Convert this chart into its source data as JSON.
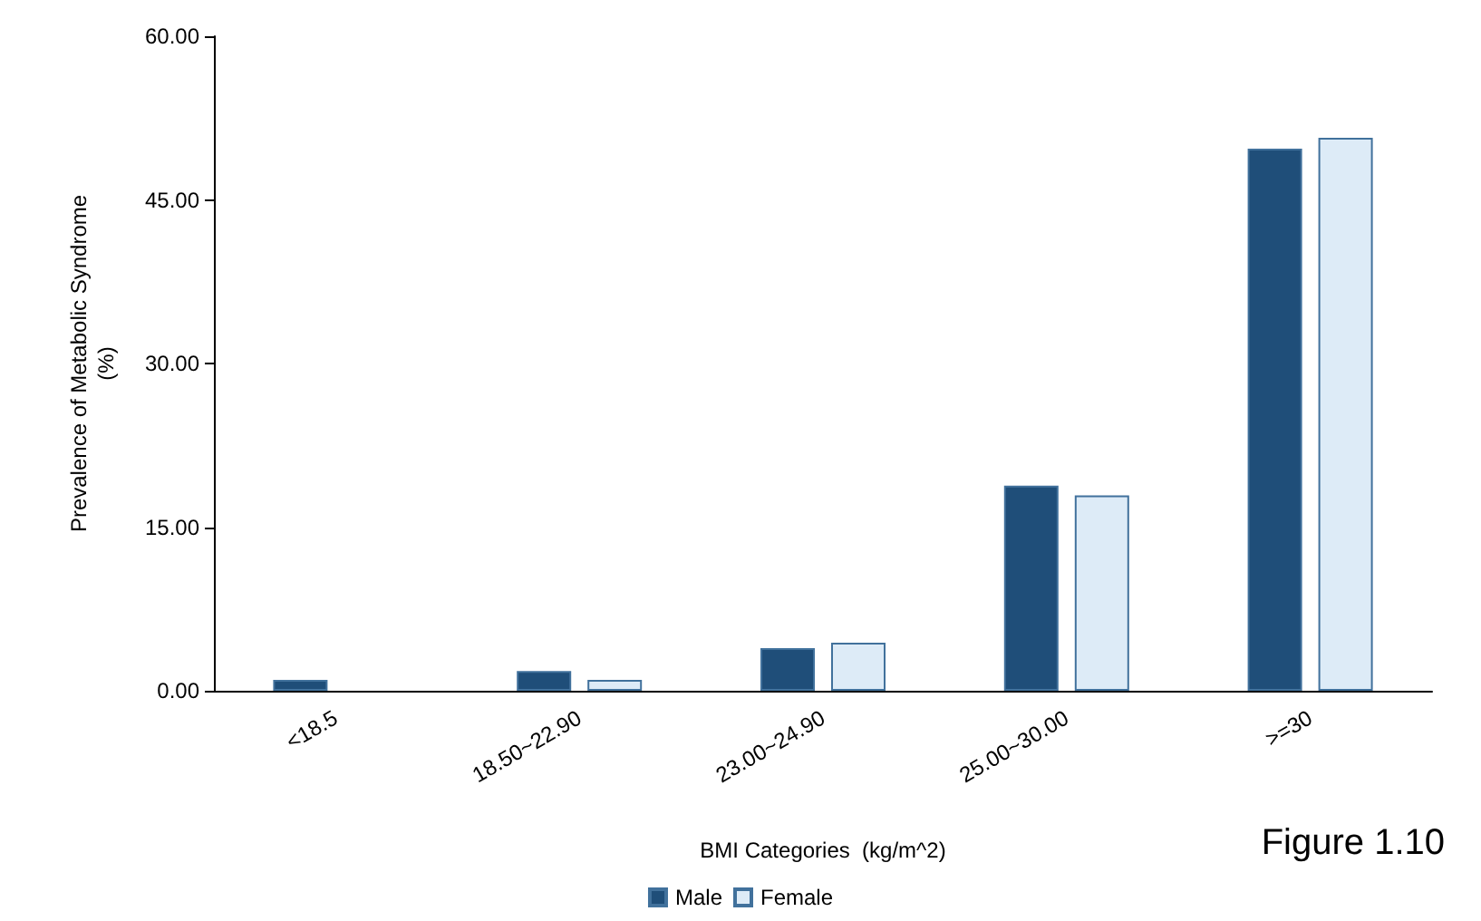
{
  "chart_data": {
    "type": "bar",
    "xlabel": "BMI Categories  (kg/m^2)",
    "ylabel": "Prevalence of Metabolic Syndrome\n(%)",
    "annotations": [
      "Figure 1.10"
    ],
    "categories": [
      "<18.5",
      "18.50~22.90",
      "23.00~24.90",
      "25.00~30.00",
      ">=30"
    ],
    "series": [
      {
        "name": "Male",
        "color": "#1f4e79",
        "values": [
          1.0,
          1.8,
          3.9,
          18.8,
          49.7
        ]
      },
      {
        "name": "Female",
        "color": "#ddebf7",
        "values": [
          null,
          1.0,
          4.4,
          17.9,
          50.7
        ]
      }
    ],
    "ylim": [
      0,
      60
    ],
    "yticks": [
      {
        "value": 0,
        "label": "0.00"
      },
      {
        "value": 15,
        "label": "15.00"
      },
      {
        "value": 30,
        "label": "30.00"
      },
      {
        "value": 45,
        "label": "45.00"
      },
      {
        "value": 60,
        "label": "60.00"
      }
    ],
    "grid": false,
    "legend": "bottom"
  }
}
